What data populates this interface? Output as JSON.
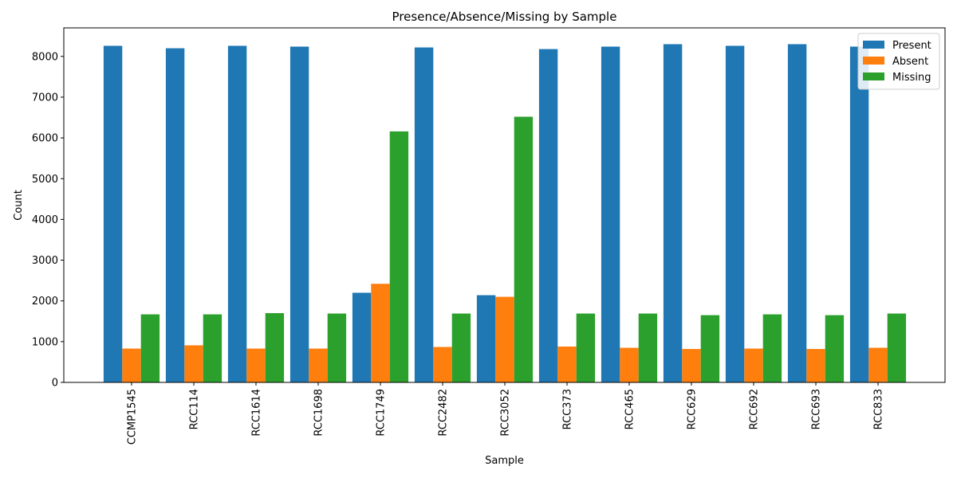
{
  "chart_data": {
    "type": "bar",
    "title": "Presence/Absence/Missing by Sample",
    "xlabel": "Sample",
    "ylabel": "Count",
    "ylim": [
      0,
      8700
    ],
    "yticks": [
      0,
      1000,
      2000,
      3000,
      4000,
      5000,
      6000,
      7000,
      8000
    ],
    "grid": false,
    "legend_position": "top-right",
    "categories": [
      "CCMP1545",
      "RCC114",
      "RCC1614",
      "RCC1698",
      "RCC1749",
      "RCC2482",
      "RCC3052",
      "RCC373",
      "RCC465",
      "RCC629",
      "RCC692",
      "RCC693",
      "RCC833"
    ],
    "series": [
      {
        "name": "Present",
        "color": "#1f77b4",
        "values": [
          8260,
          8200,
          8260,
          8240,
          2200,
          8220,
          2140,
          8180,
          8240,
          8300,
          8260,
          8300,
          8240
        ]
      },
      {
        "name": "Absent",
        "color": "#ff7f0e",
        "values": [
          830,
          910,
          830,
          830,
          2420,
          870,
          2100,
          880,
          850,
          820,
          830,
          820,
          850
        ]
      },
      {
        "name": "Missing",
        "color": "#2ca02c",
        "values": [
          1670,
          1670,
          1700,
          1690,
          6160,
          1690,
          6520,
          1690,
          1690,
          1650,
          1670,
          1650,
          1690
        ]
      }
    ]
  }
}
